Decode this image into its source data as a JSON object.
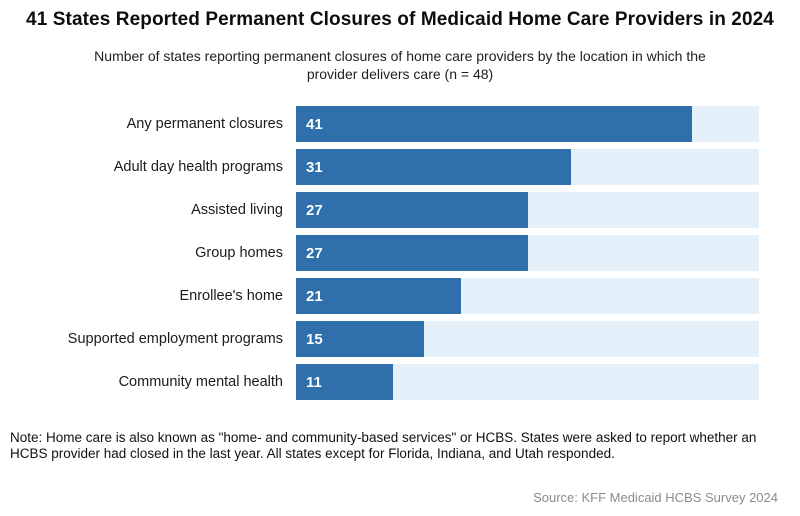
{
  "header": {
    "title": "41 States Reported Permanent Closures of Medicaid Home Care Providers in 2024",
    "subtitle": "Number of states reporting permanent closures of home care providers by the location in which the provider delivers care (n = 48)"
  },
  "chart_data": {
    "type": "bar",
    "orientation": "horizontal",
    "title": "41 States Reported Permanent Closures of Medicaid Home Care Providers in 2024",
    "subtitle": "Number of states reporting permanent closures of home care providers by the location in which the provider delivers care (n = 48)",
    "categories": [
      "Any permanent closures",
      "Adult day health programs",
      "Assisted living",
      "Group homes",
      "Enrollee's home",
      "Supported employment programs",
      "Community mental health"
    ],
    "values": [
      41,
      31,
      27,
      27,
      21,
      15,
      11
    ],
    "bar_track_pct": [
      85.5,
      59.4,
      50.1,
      50.1,
      35.6,
      27.6,
      21.0
    ],
    "xlim": [
      0,
      48
    ],
    "value_labels_inside": true,
    "grid": false,
    "legend": "none",
    "bar_color": "#2E6FAC",
    "track_color": "#E4F1FB",
    "value_label_color": "#FFFFFF"
  },
  "footer": {
    "note": "Note: Home care is also known as \"home- and community-based services\" or HCBS. States were asked to report whether an HCBS provider had closed in the last year. All states except for Florida, Indiana, and Utah responded.",
    "source": "Source: KFF Medicaid HCBS Survey 2024"
  }
}
